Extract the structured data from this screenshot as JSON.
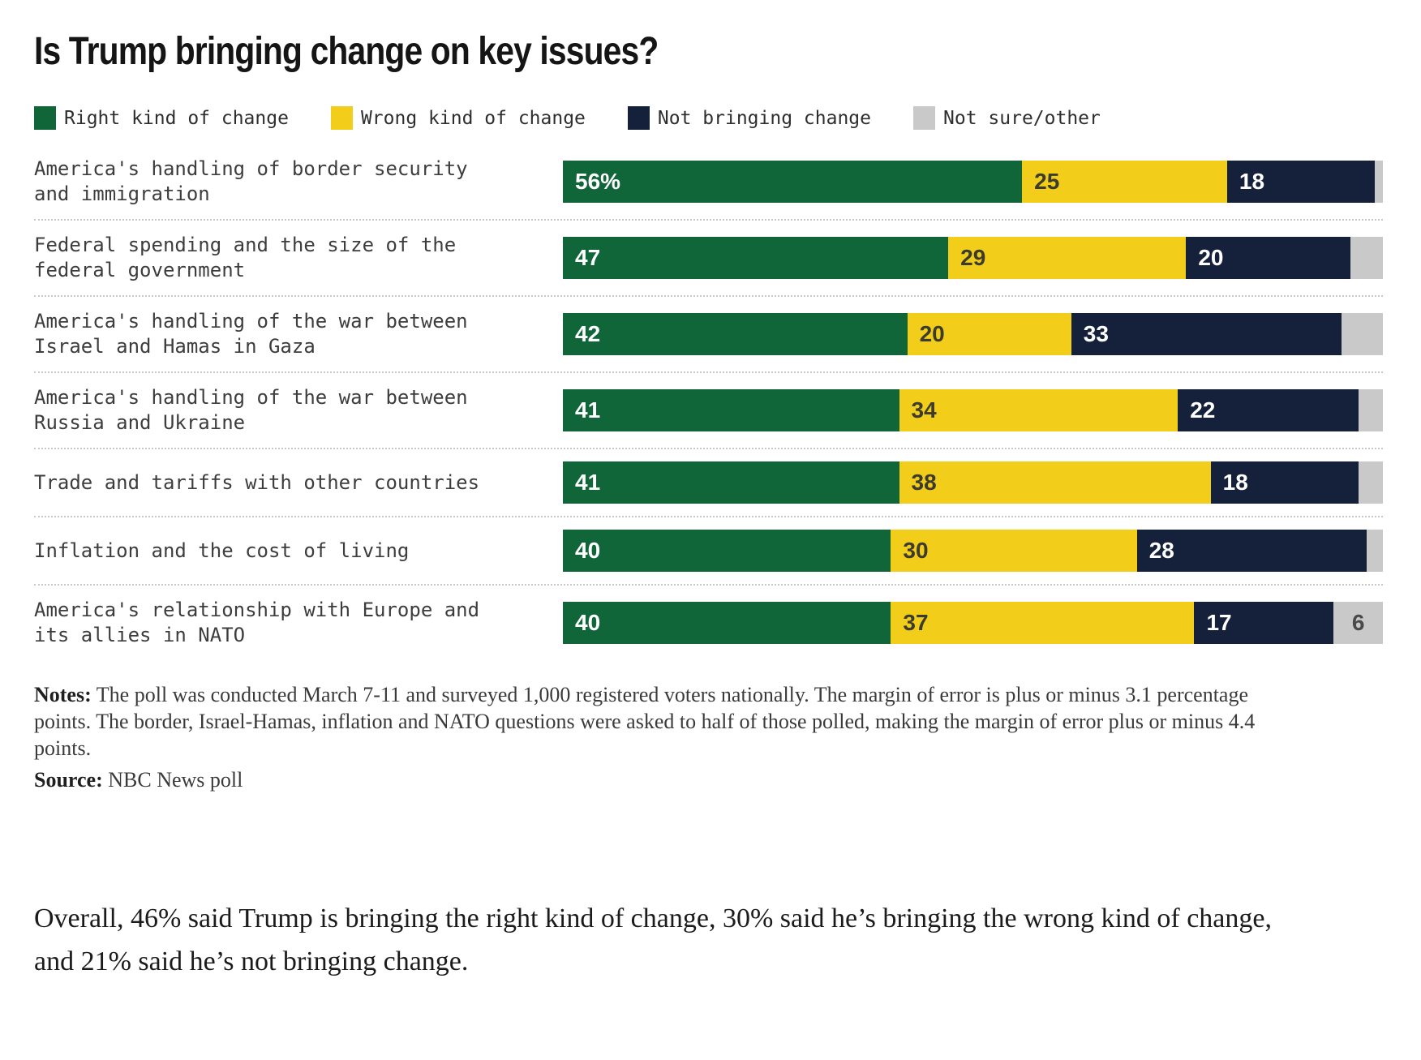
{
  "title": "Is Trump bringing change on key issues?",
  "legend": [
    {
      "label": "Right kind of change",
      "color": "#106539"
    },
    {
      "label": "Wrong kind of change",
      "color": "#F2CE1B"
    },
    {
      "label": "Not bringing change",
      "color": "#15213B"
    },
    {
      "label": "Not sure/other",
      "color": "#C9C9C9"
    }
  ],
  "chart_data": {
    "type": "bar",
    "stacked": true,
    "orientation": "horizontal",
    "title": "Is Trump bringing change on key issues?",
    "categories": [
      "America's handling of border security and immigration",
      "Federal spending and the size of the federal government",
      "America's handling of the war between Israel and Hamas in Gaza",
      "America's handling of the war between Russia and Ukraine",
      "Trade and tariffs with other countries",
      "Inflation and the cost of living",
      "America's relationship with Europe and its allies in NATO"
    ],
    "series": [
      {
        "name": "Right kind of change",
        "color": "#106539",
        "values": [
          56,
          47,
          42,
          41,
          41,
          40,
          40
        ]
      },
      {
        "name": "Wrong kind of change",
        "color": "#F2CE1B",
        "values": [
          25,
          29,
          20,
          34,
          38,
          30,
          37
        ]
      },
      {
        "name": "Not bringing change",
        "color": "#15213B",
        "values": [
          18,
          20,
          33,
          22,
          18,
          28,
          17
        ]
      },
      {
        "name": "Not sure/other",
        "color": "#C9C9C9",
        "values": [
          1,
          4,
          5,
          3,
          3,
          2,
          6
        ]
      }
    ],
    "xlim": [
      0,
      100
    ],
    "legend_position": "top",
    "grid": false,
    "value_label_notes": "values shown inside segments; first green segment labeled with %; gray segment labeled only on last row"
  },
  "rows": [
    {
      "label": "America's handling of border security and immigration",
      "segments": [
        {
          "value": 56,
          "label": "56%"
        },
        {
          "value": 25,
          "label": "25"
        },
        {
          "value": 18,
          "label": "18"
        },
        {
          "value": 1,
          "label": ""
        }
      ]
    },
    {
      "label": "Federal spending and the size of the federal government",
      "segments": [
        {
          "value": 47,
          "label": "47"
        },
        {
          "value": 29,
          "label": "29"
        },
        {
          "value": 20,
          "label": "20"
        },
        {
          "value": 4,
          "label": ""
        }
      ]
    },
    {
      "label": "America's handling of the war between Israel and Hamas in Gaza",
      "segments": [
        {
          "value": 42,
          "label": "42"
        },
        {
          "value": 20,
          "label": "20"
        },
        {
          "value": 33,
          "label": "33"
        },
        {
          "value": 5,
          "label": ""
        }
      ]
    },
    {
      "label": "America's handling of the war between Russia and Ukraine",
      "segments": [
        {
          "value": 41,
          "label": "41"
        },
        {
          "value": 34,
          "label": "34"
        },
        {
          "value": 22,
          "label": "22"
        },
        {
          "value": 3,
          "label": ""
        }
      ]
    },
    {
      "label": "Trade and tariffs with other countries",
      "segments": [
        {
          "value": 41,
          "label": "41"
        },
        {
          "value": 38,
          "label": "38"
        },
        {
          "value": 18,
          "label": "18"
        },
        {
          "value": 3,
          "label": ""
        }
      ]
    },
    {
      "label": "Inflation and the cost of living",
      "segments": [
        {
          "value": 40,
          "label": "40"
        },
        {
          "value": 30,
          "label": "30"
        },
        {
          "value": 28,
          "label": "28"
        },
        {
          "value": 2,
          "label": ""
        }
      ]
    },
    {
      "label": "America's relationship with Europe and its allies in NATO",
      "segments": [
        {
          "value": 40,
          "label": "40"
        },
        {
          "value": 37,
          "label": "37"
        },
        {
          "value": 17,
          "label": "17"
        },
        {
          "value": 6,
          "label": "6"
        }
      ]
    }
  ],
  "notes": {
    "label": "Notes:",
    "text": " The poll was conducted March 7-11 and surveyed 1,000 registered voters nationally. The margin of error is plus or minus 3.1 percentage points. The border, Israel-Hamas, inflation and NATO questions were asked to half of those polled, making the margin of error plus or minus 4.4 points."
  },
  "source": {
    "label": "Source:",
    "text": " NBC News poll"
  },
  "summary": "Overall, 46% said Trump is bringing the right kind of change, 30% said he’s bringing the wrong kind of change, and 21% said he’s not bringing change."
}
